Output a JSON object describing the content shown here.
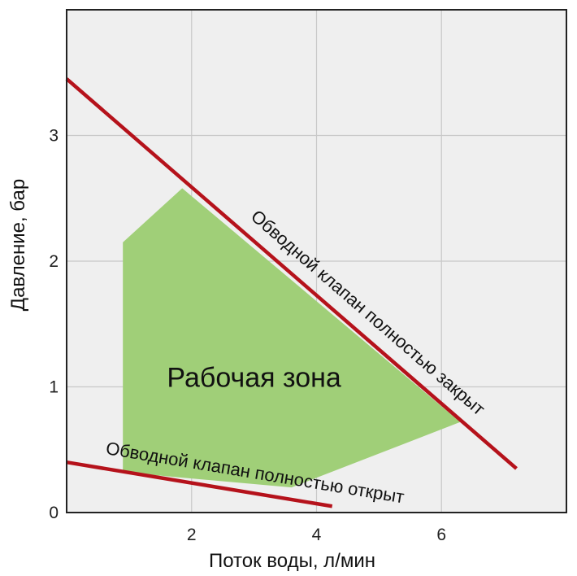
{
  "chart_data": {
    "type": "line",
    "title": "",
    "xlabel": "Поток воды, л/мин",
    "ylabel": "Давление, бар",
    "xlim": [
      0,
      8
    ],
    "ylim": [
      0,
      4
    ],
    "x_ticks": [
      "2",
      "4",
      "6"
    ],
    "y_ticks": [
      "0",
      "1",
      "2",
      "3"
    ],
    "grid": true,
    "series": [
      {
        "name": "Обводной клапан полностью закрыт",
        "points": [
          [
            0,
            3.45
          ],
          [
            7.2,
            0.35
          ]
        ],
        "color": "#b5121b"
      },
      {
        "name": "Обводной клапан полностью открыт",
        "points": [
          [
            0,
            0.4
          ],
          [
            4.25,
            0.05
          ]
        ],
        "color": "#b5121b"
      }
    ],
    "region": {
      "label": "Рабочая зона",
      "color": "#a0cf78",
      "polygon": [
        [
          0.9,
          2.15
        ],
        [
          1.85,
          2.58
        ],
        [
          6.3,
          0.72
        ],
        [
          3.6,
          0.2
        ],
        [
          0.9,
          0.32
        ]
      ]
    }
  }
}
